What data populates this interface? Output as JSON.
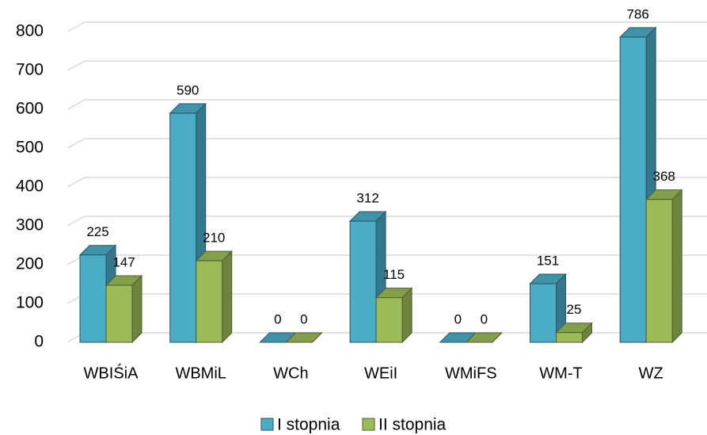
{
  "chart_data": {
    "type": "bar3d",
    "categories": [
      "WBIŚiA",
      "WBMiL",
      "WCh",
      "WEiI",
      "WMiFS",
      "WM-T",
      "WZ"
    ],
    "series": [
      {
        "name": "I stopnia",
        "color": "#4bacc6",
        "values": [
          225,
          590,
          0,
          312,
          0,
          151,
          786
        ]
      },
      {
        "name": "II stopnia",
        "color": "#9bbb59",
        "values": [
          147,
          210,
          0,
          115,
          0,
          25,
          368
        ]
      }
    ],
    "ylim": [
      0,
      800
    ],
    "yticks": [
      0,
      100,
      200,
      300,
      400,
      500,
      600,
      700,
      800
    ],
    "grid": true,
    "legend": "bottom"
  }
}
